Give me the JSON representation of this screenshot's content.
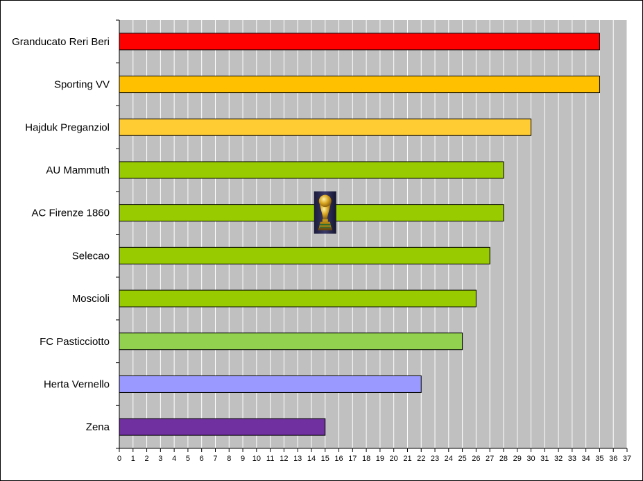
{
  "chart_data": {
    "type": "bar",
    "orientation": "horizontal",
    "categories": [
      "Granducato Reri Beri",
      "Sporting VV",
      "Hajduk Preganziol",
      "AU Mammuth",
      "AC Firenze 1860",
      "Selecao",
      "Moscioli",
      "FC Pasticciotto",
      "Herta Vernello",
      "Zena"
    ],
    "values": [
      35,
      35,
      30,
      28,
      28,
      27,
      26,
      25,
      22,
      15
    ],
    "colors": [
      "#FF0000",
      "#FFC000",
      "#FFCC33",
      "#99CC00",
      "#99CC00",
      "#99CC00",
      "#99CC00",
      "#92D050",
      "#9999FF",
      "#7030A0"
    ],
    "xlim": [
      0,
      37
    ],
    "x_ticks": [
      0,
      1,
      2,
      3,
      4,
      5,
      6,
      7,
      8,
      9,
      10,
      11,
      12,
      13,
      14,
      15,
      16,
      17,
      18,
      19,
      20,
      21,
      22,
      23,
      24,
      25,
      26,
      27,
      28,
      29,
      30,
      31,
      32,
      33,
      34,
      35,
      36,
      37
    ],
    "grid": true,
    "plot_background": "#C0C0C0",
    "gridline_color": "#FFFFFF",
    "title": "",
    "xlabel": "",
    "ylabel": "",
    "annotation_icon": "trophy-icon",
    "annotation_at": {
      "value": 15,
      "category": "AC Firenze 1860"
    }
  }
}
